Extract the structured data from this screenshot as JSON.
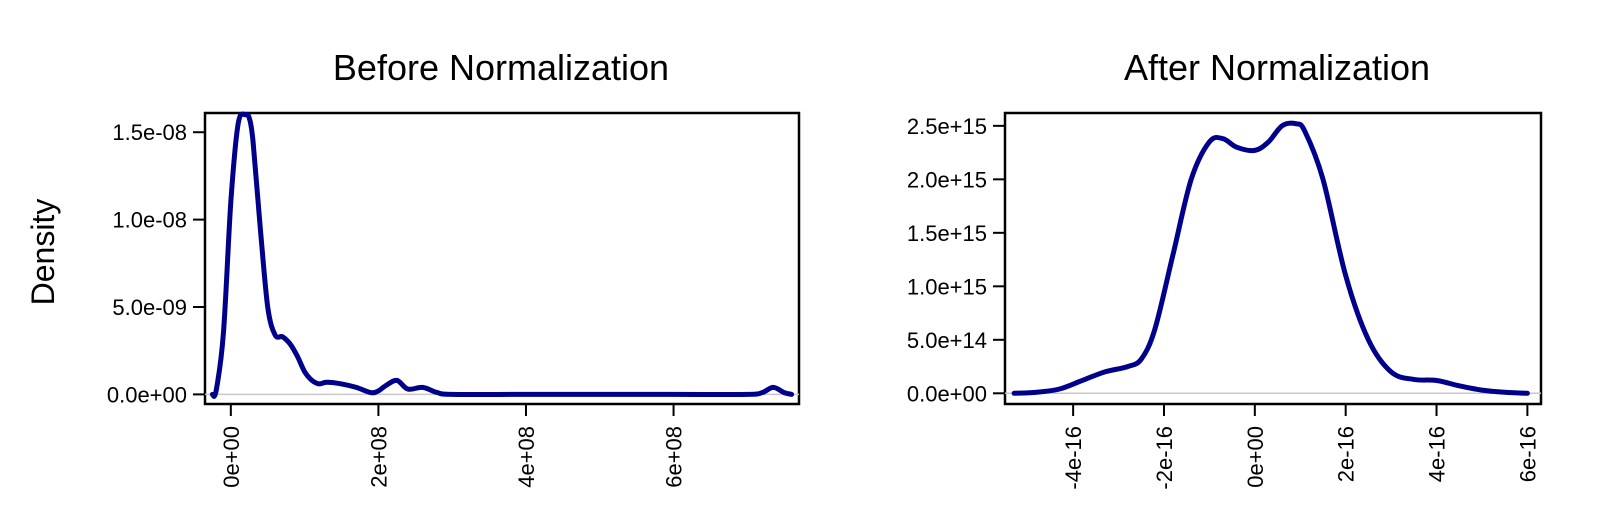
{
  "figure": {
    "ylabel": "Density"
  },
  "colors": {
    "line": "#00008B",
    "zero_line": "#C8C8C8",
    "frame": "#000000"
  },
  "chart_data": [
    {
      "type": "line",
      "title": "Before Normalization",
      "ylabel": "Density",
      "xlabel": "",
      "xlim": [
        -35000000,
        770000000
      ],
      "ylim": [
        -5.5e-10,
        1.61e-08
      ],
      "xticks": [
        0,
        200000000,
        400000000,
        600000000
      ],
      "xtick_labels": [
        "0e+00",
        "2e+08",
        "4e+08",
        "6e+08"
      ],
      "yticks": [
        0,
        5e-09,
        1e-08,
        1.5e-08
      ],
      "ytick_labels": [
        "0.0e+00",
        "5.0e-09",
        "1.0e-08",
        "1.5e-08"
      ],
      "zero_line": true,
      "grid": false,
      "series": [
        {
          "x": [
            -25000000,
            -20000000,
            -10000000,
            0,
            10000000,
            20000000,
            25000000,
            30000000,
            40000000,
            50000000,
            60000000,
            70000000,
            80000000,
            90000000,
            100000000,
            110000000,
            120000000,
            130000000,
            150000000,
            170000000,
            190000000,
            200000000,
            210000000,
            225000000,
            240000000,
            260000000,
            280000000,
            300000000,
            400000000,
            500000000,
            600000000,
            700000000,
            720000000,
            735000000,
            750000000,
            760000000
          ],
          "y": [
            0,
            2e-10,
            3.5e-09,
            1.1e-08,
            1.55e-08,
            1.6e-08,
            1.58e-08,
            1.45e-08,
            9.5e-09,
            5e-09,
            3.4e-09,
            3.3e-09,
            2.9e-09,
            2.2e-09,
            1.3e-09,
            8e-10,
            6e-10,
            7e-10,
            6e-10,
            4e-10,
            1e-10,
            2e-10,
            5e-10,
            8e-10,
            3e-10,
            4e-10,
            1e-10,
            0,
            0,
            0,
            0,
            0,
            1e-10,
            4e-10,
            1e-10,
            0
          ]
        }
      ]
    },
    {
      "type": "line",
      "title": "After Normalization",
      "ylabel": "",
      "xlabel": "",
      "xlim": [
        -5.5e-16,
        6.3e-16
      ],
      "ylim": [
        -100000000000000.0,
        2620000000000000.0
      ],
      "xticks": [
        -4e-16,
        -2e-16,
        0,
        2e-16,
        4e-16,
        6e-16
      ],
      "xtick_labels": [
        "-4e-16",
        "-2e-16",
        "0e+00",
        "2e-16",
        "4e-16",
        "6e-16"
      ],
      "yticks": [
        0,
        500000000000000.0,
        1000000000000000.0,
        1500000000000000.0,
        2000000000000000.0,
        2500000000000000.0
      ],
      "ytick_labels": [
        "0.0e+00",
        "5.0e+14",
        "1.0e+15",
        "1.5e+15",
        "2.0e+15",
        "2.5e+15"
      ],
      "zero_line": true,
      "grid": false,
      "series": [
        {
          "x": [
            -5.3e-16,
            -4.8e-16,
            -4.3e-16,
            -3.8e-16,
            -3.3e-16,
            -2.8e-16,
            -2.5e-16,
            -2.2e-16,
            -1.8e-16,
            -1.4e-16,
            -1e-16,
            -7e-17,
            -4e-17,
            0,
            3e-17,
            6e-17,
            9e-17,
            1.1e-16,
            1.5e-16,
            2e-16,
            2.5e-16,
            3e-16,
            3.5e-16,
            4e-16,
            4.5e-16,
            5e-16,
            5.5e-16,
            6e-16
          ],
          "y": [
            0,
            10000000000000.0,
            40000000000000.0,
            120000000000000.0,
            200000000000000.0,
            250000000000000.0,
            320000000000000.0,
            600000000000000.0,
            1300000000000000.0,
            2000000000000000.0,
            2350000000000000.0,
            2380000000000000.0,
            2300000000000000.0,
            2270000000000000.0,
            2350000000000000.0,
            2500000000000000.0,
            2520000000000000.0,
            2450000000000000.0,
            2000000000000000.0,
            1100000000000000.0,
            500000000000000.0,
            200000000000000.0,
            130000000000000.0,
            120000000000000.0,
            70000000000000.0,
            30000000000000.0,
            10000000000000.0,
            0
          ]
        }
      ]
    }
  ]
}
